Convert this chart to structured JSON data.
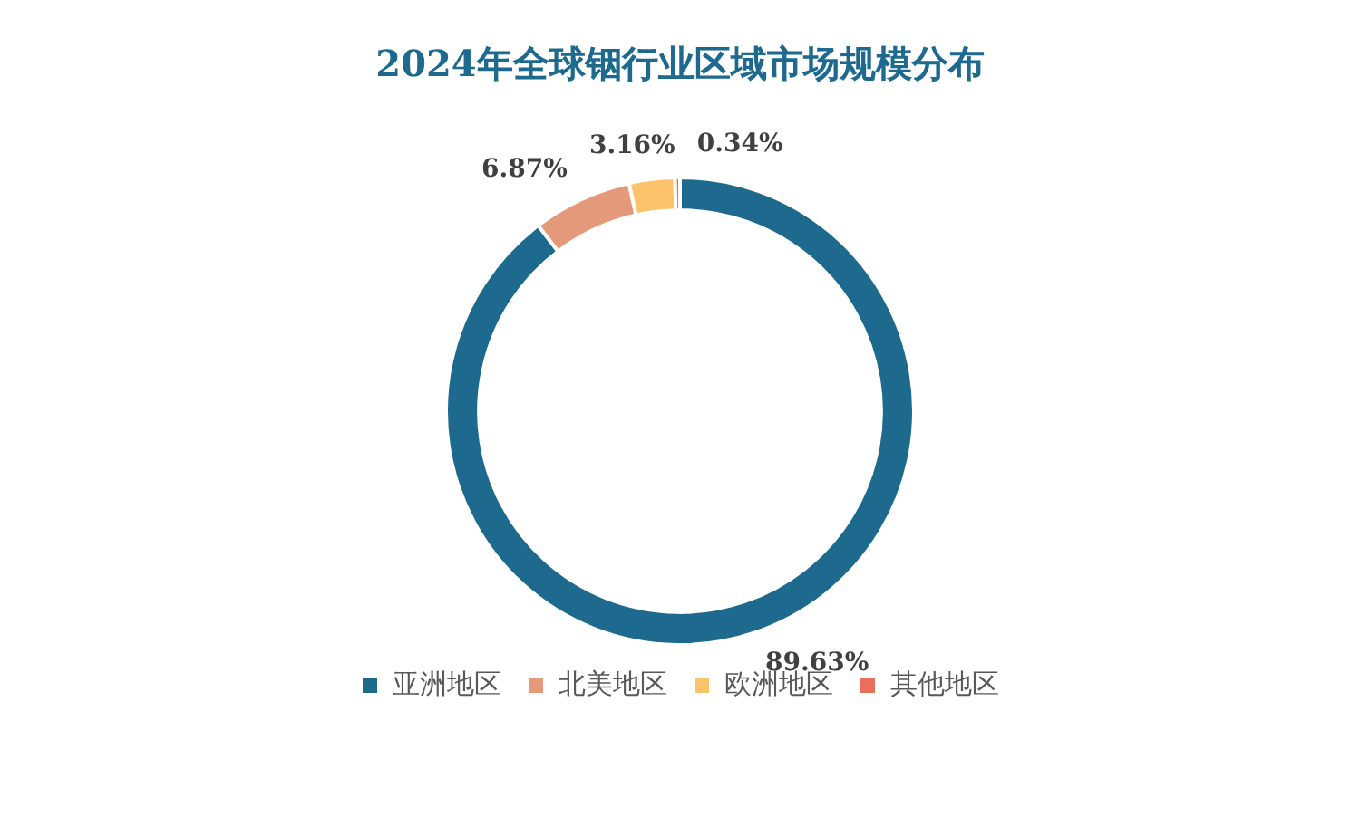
{
  "chart_data": {
    "type": "donut",
    "title": "2024年全球铟行业区域市场规模分布",
    "categories": [
      "亚洲地区",
      "北美地区",
      "欧洲地区",
      "其他地区"
    ],
    "values": [
      89.63,
      6.87,
      3.16,
      0.34
    ],
    "colors": [
      "#1d6a8e",
      "#e49a7a",
      "#fdc36c",
      "#e8705b"
    ],
    "value_labels": [
      "89.63%",
      "6.87%",
      "3.16%",
      "0.34%"
    ],
    "legend": "bottom"
  }
}
